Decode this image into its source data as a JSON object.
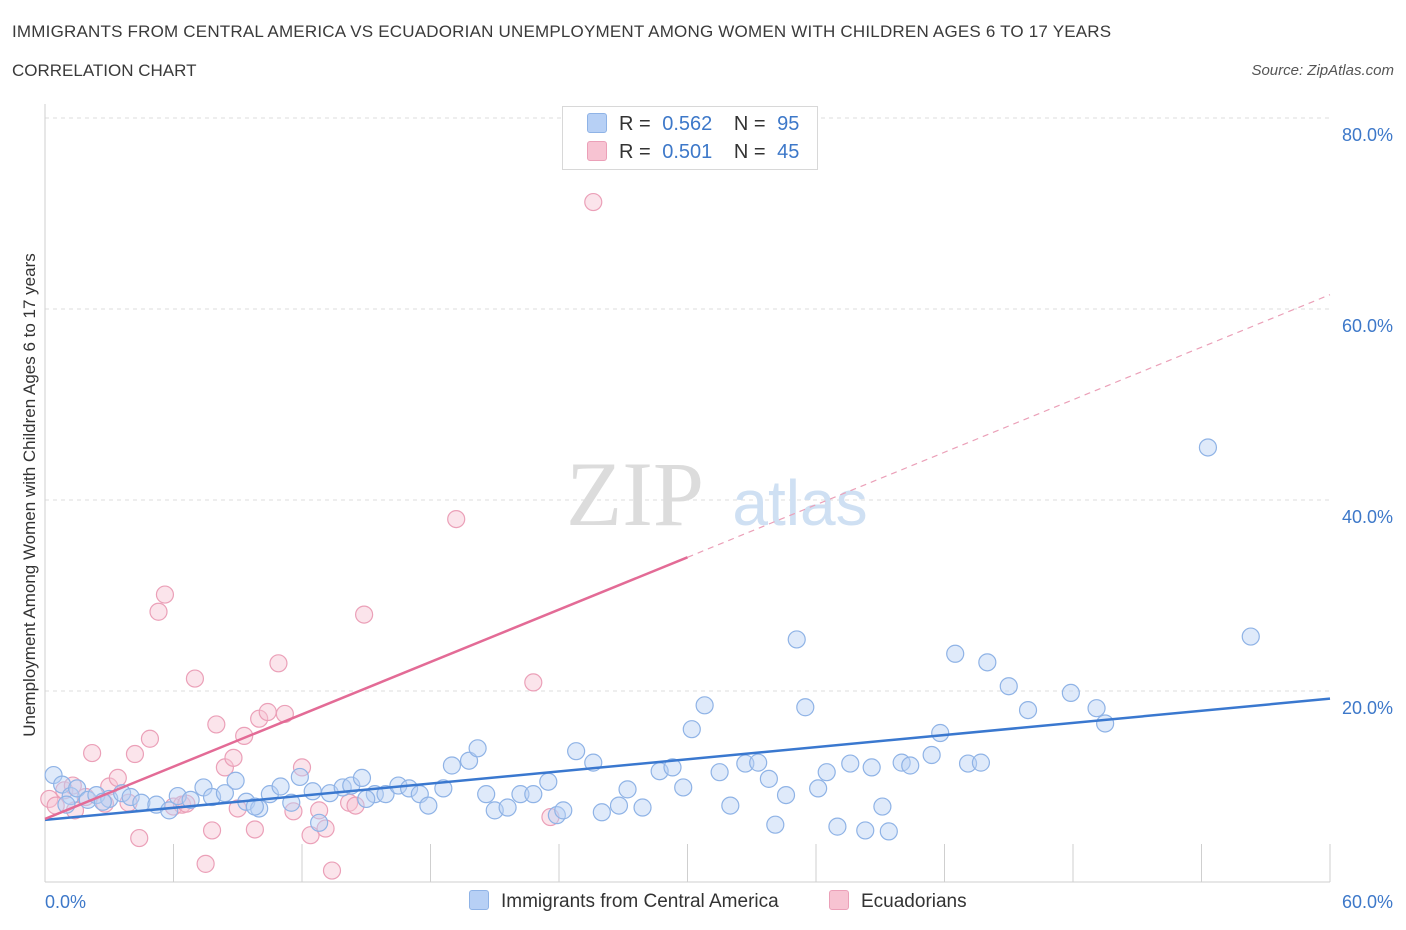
{
  "header": {
    "title": "IMMIGRANTS FROM CENTRAL AMERICA VS ECUADORIAN UNEMPLOYMENT AMONG WOMEN WITH CHILDREN AGES 6 TO 17 YEARS",
    "subtitle": "CORRELATION CHART",
    "source": "Source: ZipAtlas.com"
  },
  "watermark": {
    "zip": "ZIP",
    "atlas": "atlas"
  },
  "stats_legend": {
    "rows": [
      {
        "r_label": "R =",
        "r_value": "0.562",
        "n_label": "N =",
        "n_value": "95",
        "color": "#b7d0f5"
      },
      {
        "r_label": "R =",
        "r_value": "0.501",
        "n_label": "N =",
        "n_value": "45",
        "color": "#f7c3d2"
      }
    ]
  },
  "chart_data": {
    "type": "scatter",
    "xlabel": "",
    "ylabel": "Unemployment Among Women with Children Ages 6 to 17 years",
    "xlim": [
      0,
      60
    ],
    "ylim": [
      0,
      80
    ],
    "x_tick_labels": [
      "0.0%",
      "60.0%"
    ],
    "y_tick_labels": [
      "20.0%",
      "40.0%",
      "60.0%",
      "80.0%"
    ],
    "y_ticks": [
      20,
      40,
      60,
      80
    ],
    "grid": true,
    "legend_position": "bottom",
    "colors": {
      "blue": "#3a78cf",
      "pink": "#e36b96",
      "blue_fill": "#b7d0f5",
      "pink_fill": "#f7c3d2"
    },
    "series": [
      {
        "name": "Immigrants from Central America",
        "color": "#3a78cf",
        "trend": {
          "x1": 0,
          "y1": 6.5,
          "x2": 60,
          "y2": 19.2
        },
        "points": [
          [
            0.4,
            11.2
          ],
          [
            0.8,
            10.2
          ],
          [
            1.2,
            9.0
          ],
          [
            1.5,
            9.8
          ],
          [
            2.0,
            8.6
          ],
          [
            2.4,
            9.1
          ],
          [
            3.0,
            8.7
          ],
          [
            3.6,
            9.3
          ],
          [
            4.0,
            8.9
          ],
          [
            4.5,
            8.3
          ],
          [
            5.2,
            8.1
          ],
          [
            5.8,
            7.5
          ],
          [
            6.2,
            9.0
          ],
          [
            6.8,
            8.6
          ],
          [
            7.4,
            9.9
          ],
          [
            7.8,
            8.9
          ],
          [
            8.4,
            9.3
          ],
          [
            8.9,
            10.6
          ],
          [
            9.4,
            8.4
          ],
          [
            10.0,
            7.7
          ],
          [
            10.5,
            9.2
          ],
          [
            11.0,
            10.0
          ],
          [
            11.5,
            8.3
          ],
          [
            11.9,
            11.0
          ],
          [
            12.5,
            9.5
          ],
          [
            12.8,
            6.2
          ],
          [
            13.3,
            9.3
          ],
          [
            13.9,
            9.9
          ],
          [
            14.3,
            10.1
          ],
          [
            14.8,
            10.9
          ],
          [
            15.4,
            9.2
          ],
          [
            15.9,
            9.2
          ],
          [
            16.5,
            10.1
          ],
          [
            17.0,
            9.8
          ],
          [
            17.5,
            9.2
          ],
          [
            17.9,
            8.0
          ],
          [
            18.6,
            9.8
          ],
          [
            19.0,
            12.2
          ],
          [
            19.8,
            12.7
          ],
          [
            20.2,
            14.0
          ],
          [
            20.6,
            9.2
          ],
          [
            21.0,
            7.5
          ],
          [
            21.6,
            7.8
          ],
          [
            22.2,
            9.2
          ],
          [
            22.8,
            9.2
          ],
          [
            23.5,
            10.5
          ],
          [
            23.9,
            7.0
          ],
          [
            24.2,
            7.5
          ],
          [
            24.8,
            13.7
          ],
          [
            25.6,
            12.5
          ],
          [
            26.0,
            7.3
          ],
          [
            26.8,
            8.0
          ],
          [
            27.2,
            9.7
          ],
          [
            27.9,
            7.8
          ],
          [
            28.7,
            11.6
          ],
          [
            29.3,
            12.0
          ],
          [
            29.8,
            9.9
          ],
          [
            30.2,
            16.0
          ],
          [
            30.8,
            18.5
          ],
          [
            31.5,
            11.5
          ],
          [
            32.0,
            8.0
          ],
          [
            32.7,
            12.4
          ],
          [
            33.3,
            12.5
          ],
          [
            33.8,
            10.8
          ],
          [
            34.1,
            6.0
          ],
          [
            34.6,
            9.1
          ],
          [
            35.1,
            25.4
          ],
          [
            35.5,
            18.3
          ],
          [
            36.1,
            9.8
          ],
          [
            36.5,
            11.5
          ],
          [
            37.0,
            5.8
          ],
          [
            37.6,
            12.4
          ],
          [
            38.3,
            5.4
          ],
          [
            38.6,
            12.0
          ],
          [
            39.1,
            7.9
          ],
          [
            39.4,
            5.3
          ],
          [
            40.0,
            12.5
          ],
          [
            40.4,
            12.2
          ],
          [
            41.4,
            13.3
          ],
          [
            41.8,
            15.6
          ],
          [
            42.5,
            23.9
          ],
          [
            43.1,
            12.4
          ],
          [
            43.7,
            12.5
          ],
          [
            44.0,
            23.0
          ],
          [
            45.0,
            20.5
          ],
          [
            45.9,
            18.0
          ],
          [
            47.9,
            19.8
          ],
          [
            49.1,
            18.2
          ],
          [
            49.5,
            16.6
          ],
          [
            54.3,
            45.5
          ],
          [
            56.3,
            25.7
          ],
          [
            1.0,
            8.1
          ],
          [
            2.7,
            8.4
          ],
          [
            9.8,
            7.9
          ],
          [
            15.0,
            8.7
          ]
        ]
      },
      {
        "name": "Ecuadorians",
        "color": "#e36b96",
        "trend": {
          "x1": 0,
          "y1": 6.6,
          "x2": 30.0,
          "y2": 34.0,
          "dash_x2": 60,
          "dash_y2": 61.5
        },
        "points": [
          [
            0.2,
            8.7
          ],
          [
            0.5,
            8.0
          ],
          [
            0.9,
            9.6
          ],
          [
            1.3,
            10.1
          ],
          [
            1.9,
            8.9
          ],
          [
            2.2,
            13.5
          ],
          [
            2.8,
            8.2
          ],
          [
            3.0,
            10.0
          ],
          [
            3.4,
            10.9
          ],
          [
            3.9,
            8.3
          ],
          [
            4.2,
            13.4
          ],
          [
            4.4,
            4.6
          ],
          [
            4.9,
            15.0
          ],
          [
            5.3,
            28.3
          ],
          [
            5.6,
            30.1
          ],
          [
            6.0,
            7.9
          ],
          [
            6.4,
            8.1
          ],
          [
            7.0,
            21.3
          ],
          [
            7.5,
            1.9
          ],
          [
            7.8,
            5.4
          ],
          [
            8.0,
            16.5
          ],
          [
            8.4,
            12.0
          ],
          [
            8.8,
            13.0
          ],
          [
            9.0,
            7.7
          ],
          [
            9.3,
            15.3
          ],
          [
            9.8,
            5.5
          ],
          [
            10.0,
            17.1
          ],
          [
            10.4,
            17.8
          ],
          [
            10.9,
            22.9
          ],
          [
            11.2,
            17.6
          ],
          [
            11.6,
            7.4
          ],
          [
            12.0,
            12.0
          ],
          [
            12.4,
            4.9
          ],
          [
            12.8,
            7.5
          ],
          [
            13.1,
            5.6
          ],
          [
            13.4,
            1.2
          ],
          [
            14.2,
            8.3
          ],
          [
            14.5,
            8.0
          ],
          [
            14.9,
            28.0
          ],
          [
            19.2,
            38.0
          ],
          [
            25.6,
            71.2
          ],
          [
            22.8,
            20.9
          ],
          [
            23.6,
            6.8
          ],
          [
            1.4,
            7.5
          ],
          [
            6.6,
            8.2
          ]
        ]
      }
    ]
  },
  "bottom_legend": {
    "items": [
      {
        "label": "Immigrants from Central America",
        "color": "#b7d0f5"
      },
      {
        "label": "Ecuadorians",
        "color": "#f7c3d2"
      }
    ]
  }
}
